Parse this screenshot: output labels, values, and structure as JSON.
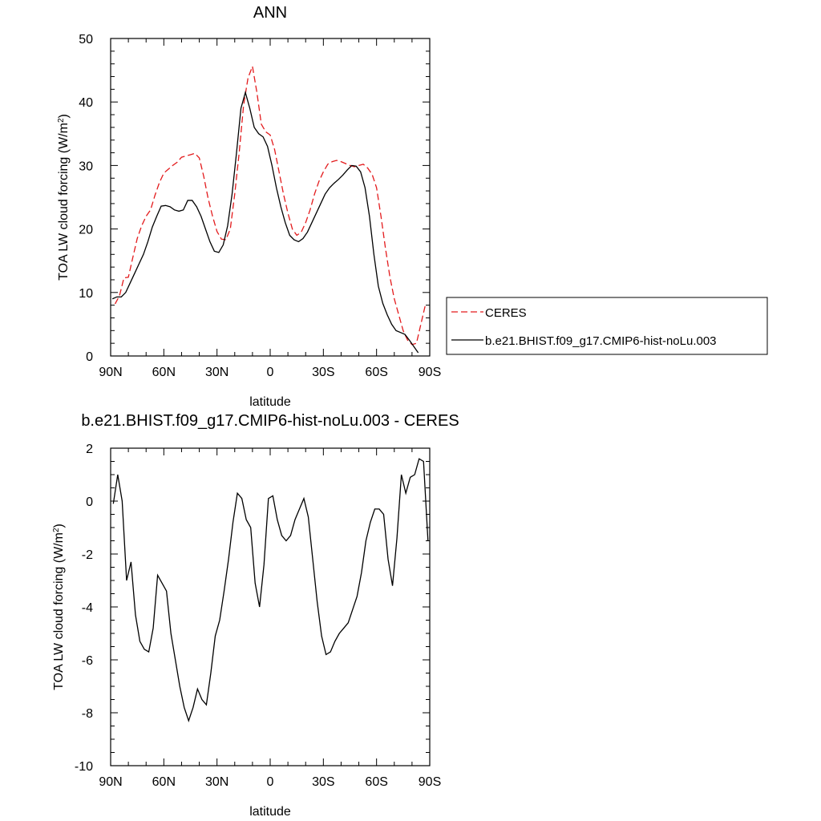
{
  "chart_data": [
    {
      "type": "line",
      "title": "ANN",
      "xlabel": "latitude",
      "ylabel": "TOA LW cloud forcing (W/m",
      "ylabel_sup": "2",
      "ylabel_close": ")",
      "xlim": [
        90,
        -90
      ],
      "ylim": [
        0,
        50
      ],
      "x_ticks": [
        {
          "value": 90,
          "label": "90N"
        },
        {
          "value": 60,
          "label": "60N"
        },
        {
          "value": 30,
          "label": "30N"
        },
        {
          "value": 0,
          "label": "0"
        },
        {
          "value": -30,
          "label": "30S"
        },
        {
          "value": -60,
          "label": "60S"
        },
        {
          "value": -90,
          "label": "90S"
        }
      ],
      "y_ticks": [
        {
          "value": 0,
          "label": "0"
        },
        {
          "value": 10,
          "label": "10"
        },
        {
          "value": 20,
          "label": "20"
        },
        {
          "value": 30,
          "label": "30"
        },
        {
          "value": 40,
          "label": "40"
        },
        {
          "value": 50,
          "label": "50"
        }
      ],
      "legend": "right",
      "series": [
        {
          "name": "CERES",
          "color": "#e31a1c",
          "dash": "dashed",
          "x": [
            87.5,
            85,
            82.5,
            80,
            77.5,
            75,
            72.5,
            70,
            67.5,
            65,
            62.5,
            60,
            57.5,
            55,
            52.5,
            50,
            47.5,
            45,
            42.5,
            40,
            37.5,
            35,
            32.5,
            30,
            27.5,
            25,
            22.5,
            20,
            17.5,
            15,
            12.5,
            10,
            7.5,
            5,
            2.5,
            0,
            -2.5,
            -5,
            -7.5,
            -10,
            -12.5,
            -15,
            -17.5,
            -20,
            -22.5,
            -25,
            -27.5,
            -30,
            -32.5,
            -35,
            -37.5,
            -40,
            -42.5,
            -45,
            -47.5,
            -50,
            -52.5,
            -55,
            -57.5,
            -60,
            -62.5,
            -65,
            -67.5,
            -70,
            -72.5,
            -75,
            -77.5,
            -80,
            -82.5,
            -85,
            -87.5,
            -90
          ],
          "values": [
            8.2,
            9.5,
            12.3,
            12.4,
            15.5,
            18.5,
            20.5,
            22.0,
            23.0,
            25.3,
            27.3,
            28.8,
            29.4,
            30.0,
            30.5,
            31.3,
            31.5,
            31.7,
            31.9,
            31.2,
            28.3,
            24.8,
            22.0,
            19.6,
            18.4,
            18.3,
            20.0,
            25.5,
            32.0,
            39.5,
            43.8,
            45.6,
            41.5,
            36.5,
            35.3,
            34.8,
            32.5,
            29.0,
            25.5,
            22.5,
            20.0,
            19.0,
            19.5,
            21.0,
            23.0,
            25.5,
            27.5,
            29.0,
            30.2,
            30.6,
            30.8,
            30.6,
            30.3,
            30.0,
            29.8,
            30.0,
            30.2,
            29.6,
            28.6,
            26.5,
            22.0,
            17.0,
            12.5,
            9.0,
            6.5,
            4.0,
            2.5,
            1.8,
            2.0,
            5.0,
            8.0,
            null
          ]
        },
        {
          "name": "b.e21.BHIST.f09_g17.CMIP6-hist-noLu.003",
          "color": "#000000",
          "dash": "solid",
          "x": [
            89,
            86.5,
            84,
            81.5,
            79,
            76.5,
            74,
            71.5,
            69,
            66.5,
            64,
            61.5,
            59,
            56.5,
            54,
            51.5,
            49,
            46.5,
            44,
            41.5,
            39,
            36.5,
            34,
            31.5,
            29,
            26.5,
            24,
            21.5,
            19,
            16.5,
            14,
            11.5,
            9,
            6.5,
            4,
            1.5,
            -1,
            -3.5,
            -6,
            -8.5,
            -11,
            -13.5,
            -16,
            -18.5,
            -21,
            -23.5,
            -26,
            -28.5,
            -31,
            -33.5,
            -36,
            -38.5,
            -41,
            -43.5,
            -46,
            -48.5,
            -51,
            -53.5,
            -56,
            -58.5,
            -61,
            -63.5,
            -66,
            -68.5,
            -71,
            -73.5,
            -76,
            -78.5,
            -81,
            -83.5,
            -86,
            -88.5
          ],
          "values": [
            9.0,
            9.3,
            9.3,
            10.0,
            11.5,
            13.0,
            14.5,
            16.0,
            18.0,
            20.3,
            22.0,
            23.6,
            23.7,
            23.5,
            23.0,
            22.8,
            23.0,
            24.5,
            24.5,
            23.5,
            22.0,
            20.0,
            18.0,
            16.5,
            16.3,
            17.5,
            20.5,
            25.5,
            32.0,
            39.0,
            41.5,
            39.0,
            36.0,
            35.0,
            34.5,
            33.0,
            30.0,
            26.5,
            23.5,
            21.0,
            19.0,
            18.3,
            18.0,
            18.5,
            19.5,
            21.0,
            22.5,
            24.0,
            25.5,
            26.5,
            27.2,
            27.8,
            28.5,
            29.3,
            30.0,
            29.9,
            29.0,
            26.5,
            22.0,
            16.0,
            11.0,
            8.3,
            6.5,
            5.0,
            4.0,
            3.7,
            3.4,
            2.5,
            1.5,
            0.5,
            null,
            null
          ]
        }
      ]
    },
    {
      "type": "line",
      "title": "b.e21.BHIST.f09_g17.CMIP6-hist-noLu.003 - CERES",
      "xlabel": "latitude",
      "ylabel": "TOA LW cloud forcing (W/m",
      "ylabel_sup": "2",
      "ylabel_close": ")",
      "xlim": [
        90,
        -90
      ],
      "ylim": [
        -10,
        2
      ],
      "x_ticks": [
        {
          "value": 90,
          "label": "90N"
        },
        {
          "value": 60,
          "label": "60N"
        },
        {
          "value": 30,
          "label": "30N"
        },
        {
          "value": 0,
          "label": "0"
        },
        {
          "value": -30,
          "label": "30S"
        },
        {
          "value": -60,
          "label": "60S"
        },
        {
          "value": -90,
          "label": "90S"
        }
      ],
      "y_ticks": [
        {
          "value": -10,
          "label": "-10"
        },
        {
          "value": -8,
          "label": "-8"
        },
        {
          "value": -6,
          "label": "-6"
        },
        {
          "value": -4,
          "label": "-4"
        },
        {
          "value": -2,
          "label": "-2"
        },
        {
          "value": 0,
          "label": "0"
        },
        {
          "value": 2,
          "label": "2"
        }
      ],
      "series": [
        {
          "color": "#000000",
          "dash": "solid",
          "x": [
            88.5,
            86,
            83.5,
            81,
            78.5,
            76,
            73.5,
            71,
            68.5,
            66,
            63.5,
            61,
            58.5,
            56,
            53.5,
            51,
            48.5,
            46,
            43.5,
            41,
            38.5,
            36,
            33.5,
            31,
            28.5,
            26,
            23.5,
            21,
            18.5,
            16,
            13.5,
            11,
            8.5,
            6,
            3.5,
            1,
            -1.5,
            -4,
            -6.5,
            -9,
            -11.5,
            -14,
            -16.5,
            -19,
            -21.5,
            -24,
            -26.5,
            -29,
            -31.5,
            -34,
            -36.5,
            -39,
            -41.5,
            -44,
            -46.5,
            -49,
            -51.5,
            -54,
            -56.5,
            -59,
            -61.5,
            -64,
            -66.5,
            -69,
            -71.5,
            -74,
            -76.5,
            -79,
            -81.5,
            -84,
            -86.5,
            -89
          ],
          "values": [
            -0.1,
            1.0,
            0.0,
            -3.0,
            -2.3,
            -4.3,
            -5.3,
            -5.6,
            -5.7,
            -4.8,
            -2.8,
            -3.1,
            -3.4,
            -5.0,
            -6.0,
            -7.0,
            -7.8,
            -8.3,
            -7.8,
            -7.1,
            -7.5,
            -7.7,
            -6.5,
            -5.1,
            -4.5,
            -3.4,
            -2.2,
            -0.8,
            0.3,
            0.1,
            -0.7,
            -1.0,
            -3.1,
            -4.0,
            -2.4,
            0.1,
            0.2,
            -0.7,
            -1.3,
            -1.5,
            -1.3,
            -0.7,
            -0.3,
            0.1,
            -0.6,
            -2.2,
            -3.8,
            -5.1,
            -5.8,
            -5.7,
            -5.3,
            -5.0,
            -4.8,
            -4.6,
            -4.1,
            -3.6,
            -2.7,
            -1.5,
            -0.8,
            -0.3,
            -0.3,
            -0.5,
            -2.2,
            -3.2,
            -1.4,
            1.0,
            0.3,
            0.9,
            1.0,
            1.6,
            1.5,
            -1.5
          ]
        }
      ]
    }
  ]
}
